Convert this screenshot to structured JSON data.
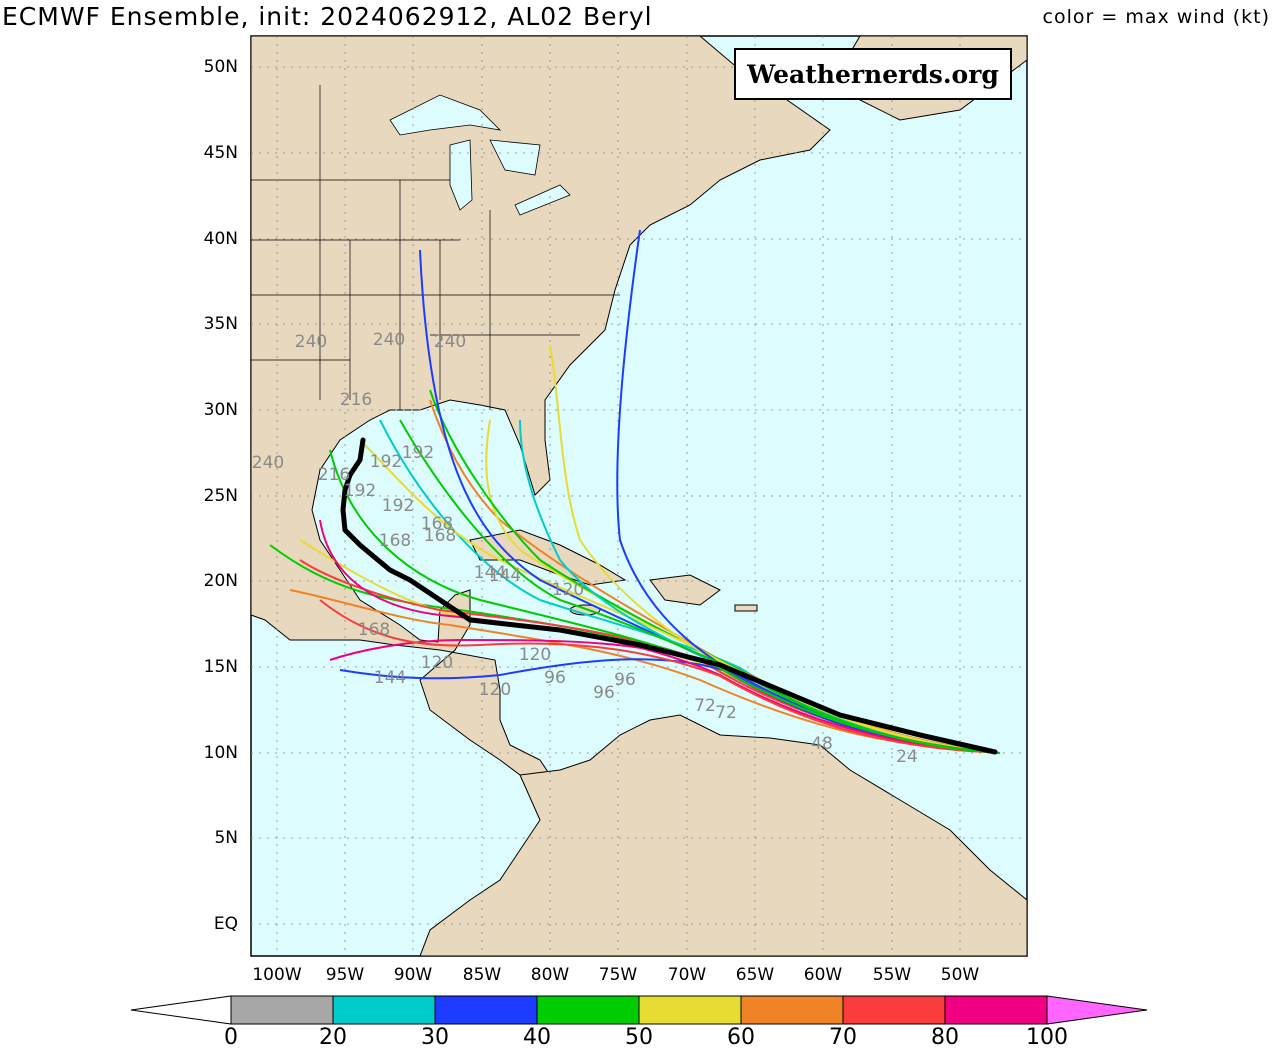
{
  "header": {
    "title": "ECMWF Ensemble, init: 2024062912, AL02 Beryl",
    "legend_caption": "color = max wind (kt)"
  },
  "watermark": "Weathernerds.org",
  "axes": {
    "lat_labels": [
      "50N",
      "45N",
      "40N",
      "35N",
      "30N",
      "25N",
      "20N",
      "15N",
      "10N",
      "5N",
      "EQ"
    ],
    "lon_labels": [
      "100W",
      "95W",
      "90W",
      "85W",
      "80W",
      "75W",
      "70W",
      "65W",
      "60W",
      "55W",
      "50W"
    ]
  },
  "colorbar": {
    "ticks": [
      "0",
      "20",
      "30",
      "40",
      "50",
      "60",
      "70",
      "80",
      "100"
    ],
    "colors": [
      "#a7a7a7",
      "#00cccc",
      "#1e3cff",
      "#00cc00",
      "#e6dc32",
      "#f08228",
      "#fa3c3c",
      "#f00082",
      "#ff66ff"
    ]
  },
  "map_colors": {
    "ocean": "#dcfcfe",
    "land": "#e8d8bd",
    "mean_track": "#000000"
  },
  "forecast_hour_labels": [
    "240",
    "240",
    "240",
    "240",
    "216",
    "216",
    "192",
    "192",
    "192",
    "192",
    "168",
    "168",
    "168",
    "168",
    "144",
    "144",
    "144",
    "120",
    "120",
    "120",
    "120",
    "96",
    "96",
    "96",
    "72",
    "72",
    "48",
    "24"
  ]
}
